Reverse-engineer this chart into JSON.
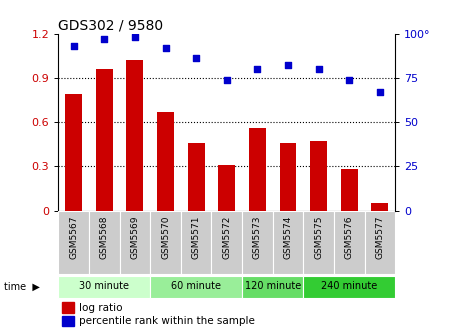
{
  "title": "GDS302 / 9580",
  "samples": [
    "GSM5567",
    "GSM5568",
    "GSM5569",
    "GSM5570",
    "GSM5571",
    "GSM5572",
    "GSM5573",
    "GSM5574",
    "GSM5575",
    "GSM5576",
    "GSM5577"
  ],
  "log_ratio": [
    0.79,
    0.96,
    1.02,
    0.67,
    0.46,
    0.31,
    0.56,
    0.46,
    0.47,
    0.28,
    0.05
  ],
  "percentile": [
    93,
    97,
    98,
    92,
    86,
    74,
    80,
    82,
    80,
    74,
    67
  ],
  "bar_color": "#cc0000",
  "dot_color": "#0000cc",
  "ylim_left": [
    0,
    1.2
  ],
  "ylim_right": [
    0,
    100
  ],
  "yticks_left": [
    0,
    0.3,
    0.6,
    0.9,
    1.2
  ],
  "yticks_right": [
    0,
    25,
    50,
    75,
    100
  ],
  "ytick_labels_left": [
    "0",
    "0.3",
    "0.6",
    "0.9",
    "1.2"
  ],
  "ytick_labels_right": [
    "0",
    "25",
    "50",
    "75",
    "100°"
  ],
  "groups": [
    {
      "label": "30 minute",
      "start": 0,
      "end": 3,
      "color": "#ccffcc"
    },
    {
      "label": "60 minute",
      "start": 3,
      "end": 6,
      "color": "#99ee99"
    },
    {
      "label": "120 minute",
      "start": 6,
      "end": 8,
      "color": "#66dd66"
    },
    {
      "label": "240 minute",
      "start": 8,
      "end": 11,
      "color": "#33cc33"
    }
  ],
  "legend_log": "log ratio",
  "legend_pct": "percentile rank within the sample",
  "bg_color": "#ffffff",
  "xlabel_bg_color": "#cccccc",
  "dotted_line_color": "#000000",
  "grid_vals": [
    0.3,
    0.6,
    0.9
  ]
}
